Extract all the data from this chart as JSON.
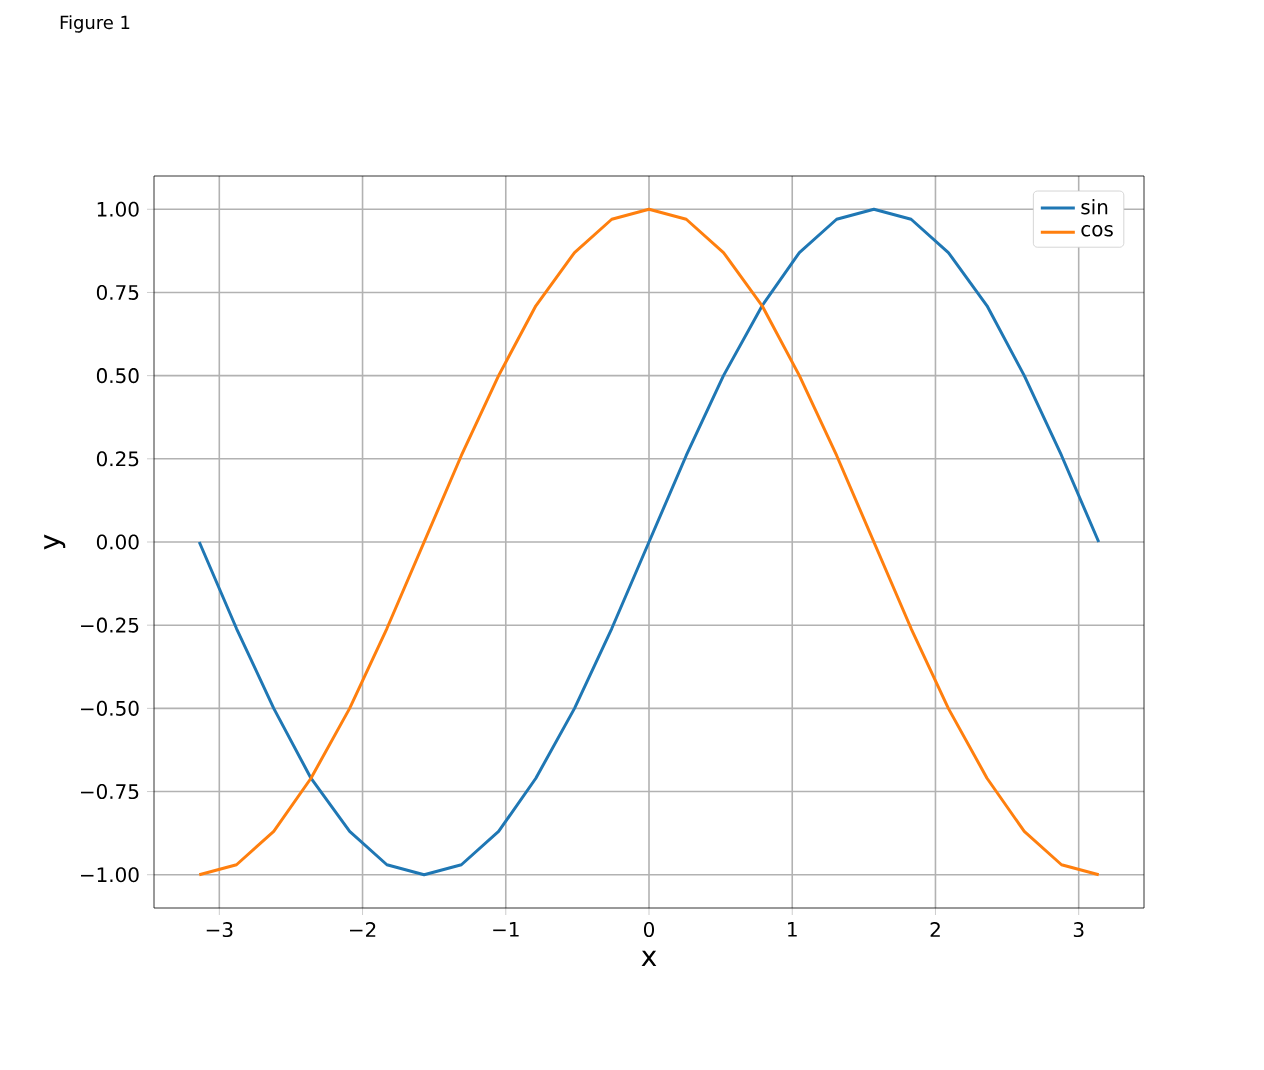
{
  "chart_data": {
    "type": "line",
    "xlabel": "x",
    "ylabel": "y",
    "annotations": [
      "Figure 1"
    ],
    "x": [
      -3.14,
      -2.88,
      -2.62,
      -2.36,
      -2.09,
      -1.83,
      -1.57,
      -1.31,
      -1.05,
      -0.79,
      -0.52,
      -0.26,
      0,
      0.26,
      0.52,
      0.79,
      1.05,
      1.31,
      1.57,
      1.83,
      2.09,
      2.36,
      2.62,
      2.88,
      3.14
    ],
    "series": [
      {
        "name": "sin",
        "color": "#1f77b4",
        "values": [
          0,
          -0.26,
          -0.5,
          -0.71,
          -0.87,
          -0.97,
          -1,
          -0.97,
          -0.87,
          -0.71,
          -0.5,
          -0.26,
          0,
          0.26,
          0.5,
          0.71,
          0.87,
          0.97,
          1,
          0.97,
          0.87,
          0.71,
          0.5,
          0.26,
          0
        ]
      },
      {
        "name": "cos",
        "color": "#ff7f0e",
        "values": [
          -1,
          -0.97,
          -0.87,
          -0.71,
          -0.5,
          -0.26,
          0,
          0.26,
          0.5,
          0.71,
          0.87,
          0.97,
          1,
          0.97,
          0.87,
          0.71,
          0.5,
          0.26,
          0,
          -0.26,
          -0.5,
          -0.71,
          -0.87,
          -0.97,
          -1
        ]
      }
    ],
    "xlim": [
      -3.456,
      3.456
    ],
    "ylim": [
      -1.1,
      1.1
    ],
    "xticks": [
      {
        "value": -3,
        "label": "−3"
      },
      {
        "value": -2,
        "label": "−2"
      },
      {
        "value": -1,
        "label": "−1"
      },
      0,
      1,
      2,
      3
    ],
    "yticks": [
      {
        "value": -1,
        "label": "−1.00"
      },
      {
        "value": -0.75,
        "label": "−0.75"
      },
      {
        "value": -0.5,
        "label": "−0.50"
      },
      {
        "value": -0.25,
        "label": "−0.25"
      },
      {
        "value": 0,
        "label": "0.00"
      },
      {
        "value": 0.25,
        "label": "0.25"
      },
      {
        "value": 0.5,
        "label": "0.50"
      },
      {
        "value": 0.75,
        "label": "0.75"
      },
      {
        "value": 1,
        "label": "1.00"
      }
    ],
    "grid": true,
    "legend": "top right",
    "marker": "none",
    "line_style": "solid"
  }
}
